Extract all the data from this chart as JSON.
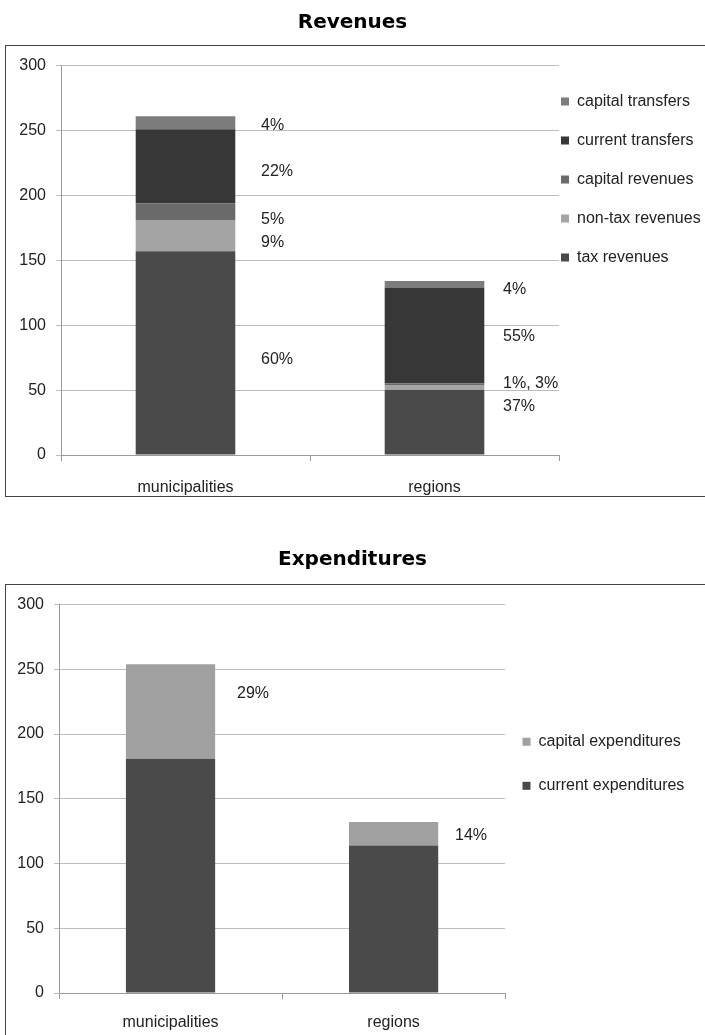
{
  "chart_data": [
    {
      "type": "bar",
      "title": "Revenues",
      "categories": [
        "municipalities",
        "regions"
      ],
      "stacked": true,
      "series": [
        {
          "name": "tax revenues",
          "color": "#4a4a4a",
          "values": [
            157,
            50
          ]
        },
        {
          "name": "non-tax revenues",
          "color": "#a4a4a4",
          "values": [
            24,
            4
          ]
        },
        {
          "name": "capital revenues",
          "color": "#6a6a6a",
          "values": [
            13,
            1
          ]
        },
        {
          "name": "current transfers",
          "color": "#373737",
          "values": [
            57,
            74
          ]
        },
        {
          "name": "capital transfers",
          "color": "#7c7c7c",
          "values": [
            10,
            5
          ]
        }
      ],
      "annotations": [
        "4%",
        "22%",
        "5%",
        "9%",
        "60%",
        "4%",
        "55%",
        "1%, 3%",
        "37%"
      ],
      "ylim": [
        0,
        300
      ],
      "yticks": [
        0,
        50,
        100,
        150,
        200,
        250,
        300
      ],
      "grid": "y",
      "legend": "right"
    },
    {
      "type": "bar",
      "title": "Expenditures",
      "categories": [
        "municipalities",
        "regions"
      ],
      "stacked": true,
      "series": [
        {
          "name": "current expenditures",
          "color": "#4a4a4a",
          "values": [
            181,
            114
          ]
        },
        {
          "name": "capital expenditures",
          "color": "#a0a0a0",
          "values": [
            73,
            18
          ]
        }
      ],
      "annotations": [
        "29%",
        "14%"
      ],
      "ylim": [
        0,
        300
      ],
      "yticks": [
        0,
        50,
        100,
        150,
        200,
        250,
        300
      ],
      "grid": "y",
      "legend": "right"
    }
  ]
}
